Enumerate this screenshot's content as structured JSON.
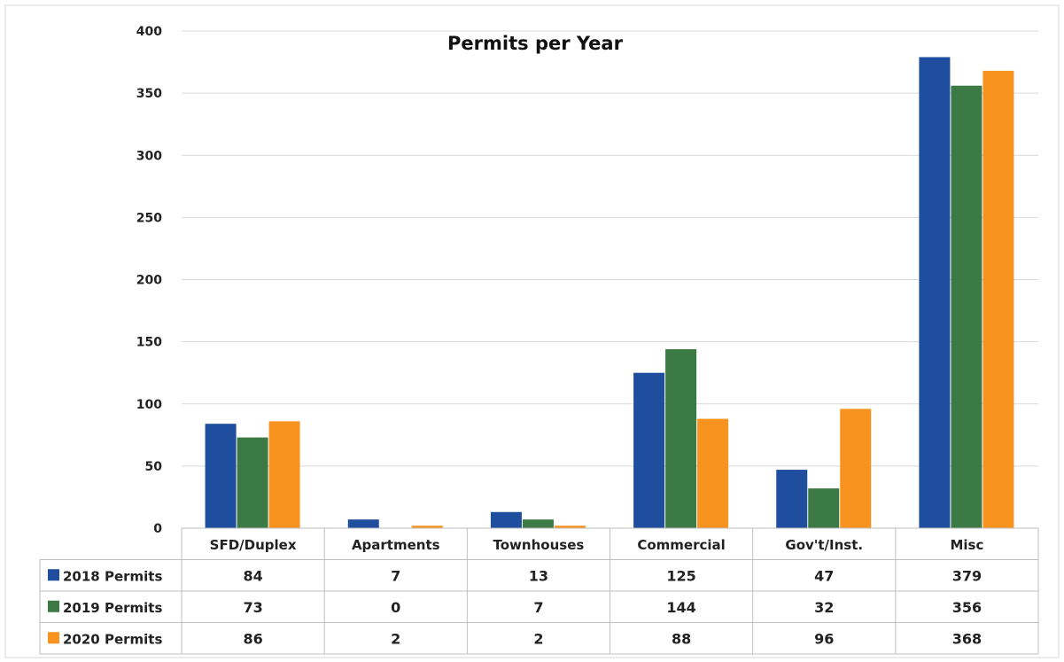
{
  "chart_data": {
    "type": "bar",
    "title": "Permits per Year",
    "categories": [
      "SFD/Duplex",
      "Apartments",
      "Townhouses",
      "Commercial",
      "Gov't/Inst.",
      "Misc"
    ],
    "series": [
      {
        "name": "2018 Permits",
        "values": [
          84,
          7,
          13,
          125,
          47,
          379
        ],
        "color": "#1f4e9e"
      },
      {
        "name": "2019 Permits",
        "values": [
          73,
          0,
          7,
          144,
          32,
          356
        ],
        "color": "#3c7a45"
      },
      {
        "name": "2020 Permits",
        "values": [
          86,
          2,
          2,
          88,
          96,
          368
        ],
        "color": "#f7931e"
      }
    ],
    "ylim": [
      0,
      400
    ],
    "yticks": [
      0,
      50,
      100,
      150,
      200,
      250,
      300,
      350,
      400
    ],
    "grid": true,
    "legend": "data-table"
  }
}
